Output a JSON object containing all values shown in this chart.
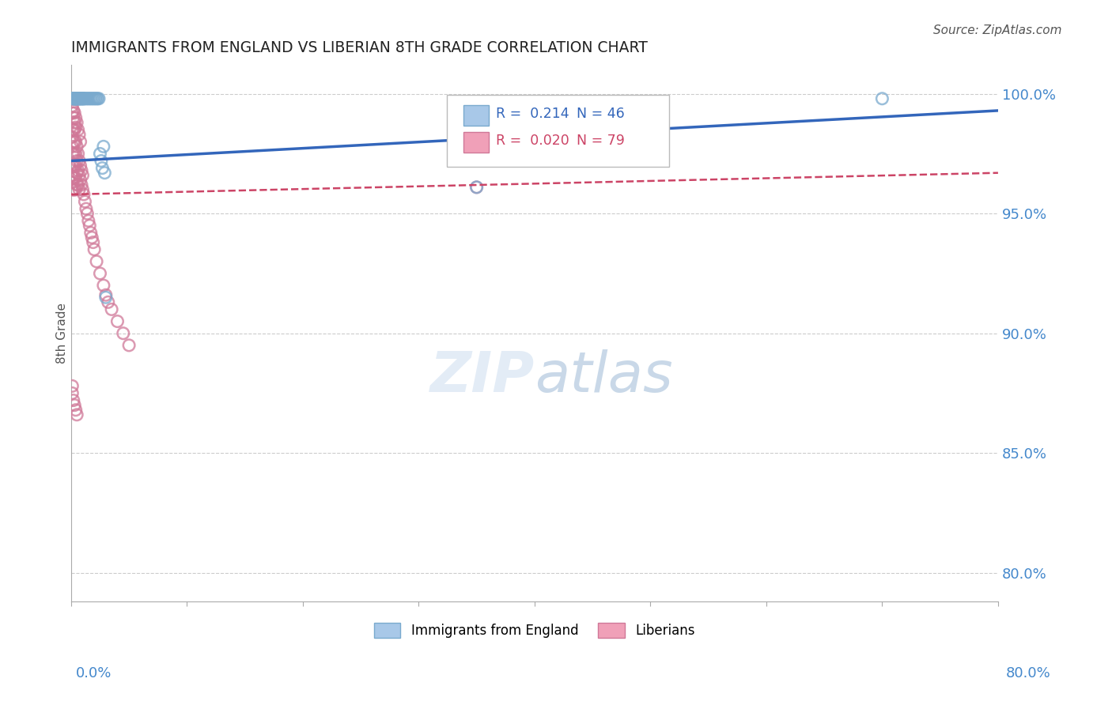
{
  "title": "IMMIGRANTS FROM ENGLAND VS LIBERIAN 8TH GRADE CORRELATION CHART",
  "source": "Source: ZipAtlas.com",
  "ylabel": "8th Grade",
  "ytick_values": [
    0.8,
    0.85,
    0.9,
    0.95,
    1.0
  ],
  "xlim": [
    0.0,
    0.8
  ],
  "ylim": [
    0.788,
    1.012
  ],
  "legend_england_label": "Immigrants from England",
  "legend_liberian_label": "Liberians",
  "england_R": "0.214",
  "england_N": "46",
  "liberian_R": "0.020",
  "liberian_N": "79",
  "england_color": "#a8c8e8",
  "liberian_color": "#f0a0b8",
  "england_edge_color": "#7aaace",
  "liberian_edge_color": "#d07898",
  "england_line_color": "#3366bb",
  "liberian_line_color": "#cc4466",
  "england_scatter_x": [
    0.001,
    0.002,
    0.002,
    0.003,
    0.003,
    0.003,
    0.004,
    0.004,
    0.004,
    0.005,
    0.005,
    0.005,
    0.006,
    0.006,
    0.007,
    0.007,
    0.007,
    0.008,
    0.008,
    0.009,
    0.009,
    0.01,
    0.01,
    0.011,
    0.011,
    0.012,
    0.013,
    0.014,
    0.015,
    0.016,
    0.017,
    0.018,
    0.019,
    0.02,
    0.021,
    0.022,
    0.023,
    0.024,
    0.025,
    0.026,
    0.027,
    0.028,
    0.029,
    0.03,
    0.35,
    0.7
  ],
  "england_scatter_y": [
    0.998,
    0.998,
    0.998,
    0.998,
    0.998,
    0.998,
    0.998,
    0.998,
    0.998,
    0.998,
    0.998,
    0.998,
    0.998,
    0.998,
    0.998,
    0.998,
    0.998,
    0.998,
    0.998,
    0.998,
    0.998,
    0.998,
    0.998,
    0.998,
    0.998,
    0.998,
    0.998,
    0.998,
    0.998,
    0.998,
    0.998,
    0.998,
    0.998,
    0.998,
    0.998,
    0.998,
    0.998,
    0.998,
    0.975,
    0.972,
    0.969,
    0.978,
    0.967,
    0.915,
    0.961,
    0.998
  ],
  "liberian_scatter_x": [
    0.001,
    0.001,
    0.001,
    0.001,
    0.001,
    0.001,
    0.001,
    0.001,
    0.002,
    0.002,
    0.002,
    0.002,
    0.002,
    0.002,
    0.003,
    0.003,
    0.003,
    0.003,
    0.003,
    0.003,
    0.004,
    0.004,
    0.004,
    0.004,
    0.004,
    0.005,
    0.005,
    0.005,
    0.005,
    0.006,
    0.006,
    0.006,
    0.007,
    0.007,
    0.007,
    0.008,
    0.008,
    0.009,
    0.009,
    0.01,
    0.01,
    0.011,
    0.012,
    0.013,
    0.014,
    0.015,
    0.016,
    0.017,
    0.018,
    0.019,
    0.02,
    0.022,
    0.025,
    0.028,
    0.03,
    0.032,
    0.035,
    0.04,
    0.045,
    0.05,
    0.001,
    0.001,
    0.002,
    0.002,
    0.003,
    0.003,
    0.004,
    0.004,
    0.005,
    0.006,
    0.007,
    0.008,
    0.35,
    0.001,
    0.001,
    0.002,
    0.003,
    0.004,
    0.005
  ],
  "liberian_scatter_y": [
    0.985,
    0.982,
    0.978,
    0.975,
    0.97,
    0.966,
    0.963,
    0.96,
    0.985,
    0.98,
    0.975,
    0.97,
    0.965,
    0.96,
    0.985,
    0.98,
    0.975,
    0.97,
    0.965,
    0.96,
    0.98,
    0.975,
    0.97,
    0.965,
    0.96,
    0.978,
    0.972,
    0.967,
    0.962,
    0.975,
    0.968,
    0.962,
    0.972,
    0.966,
    0.96,
    0.97,
    0.964,
    0.968,
    0.962,
    0.966,
    0.96,
    0.958,
    0.955,
    0.952,
    0.95,
    0.947,
    0.945,
    0.942,
    0.94,
    0.938,
    0.935,
    0.93,
    0.925,
    0.92,
    0.916,
    0.913,
    0.91,
    0.905,
    0.9,
    0.895,
    0.995,
    0.992,
    0.993,
    0.99,
    0.992,
    0.988,
    0.99,
    0.986,
    0.988,
    0.985,
    0.983,
    0.98,
    0.961,
    0.878,
    0.875,
    0.872,
    0.87,
    0.868,
    0.866
  ]
}
